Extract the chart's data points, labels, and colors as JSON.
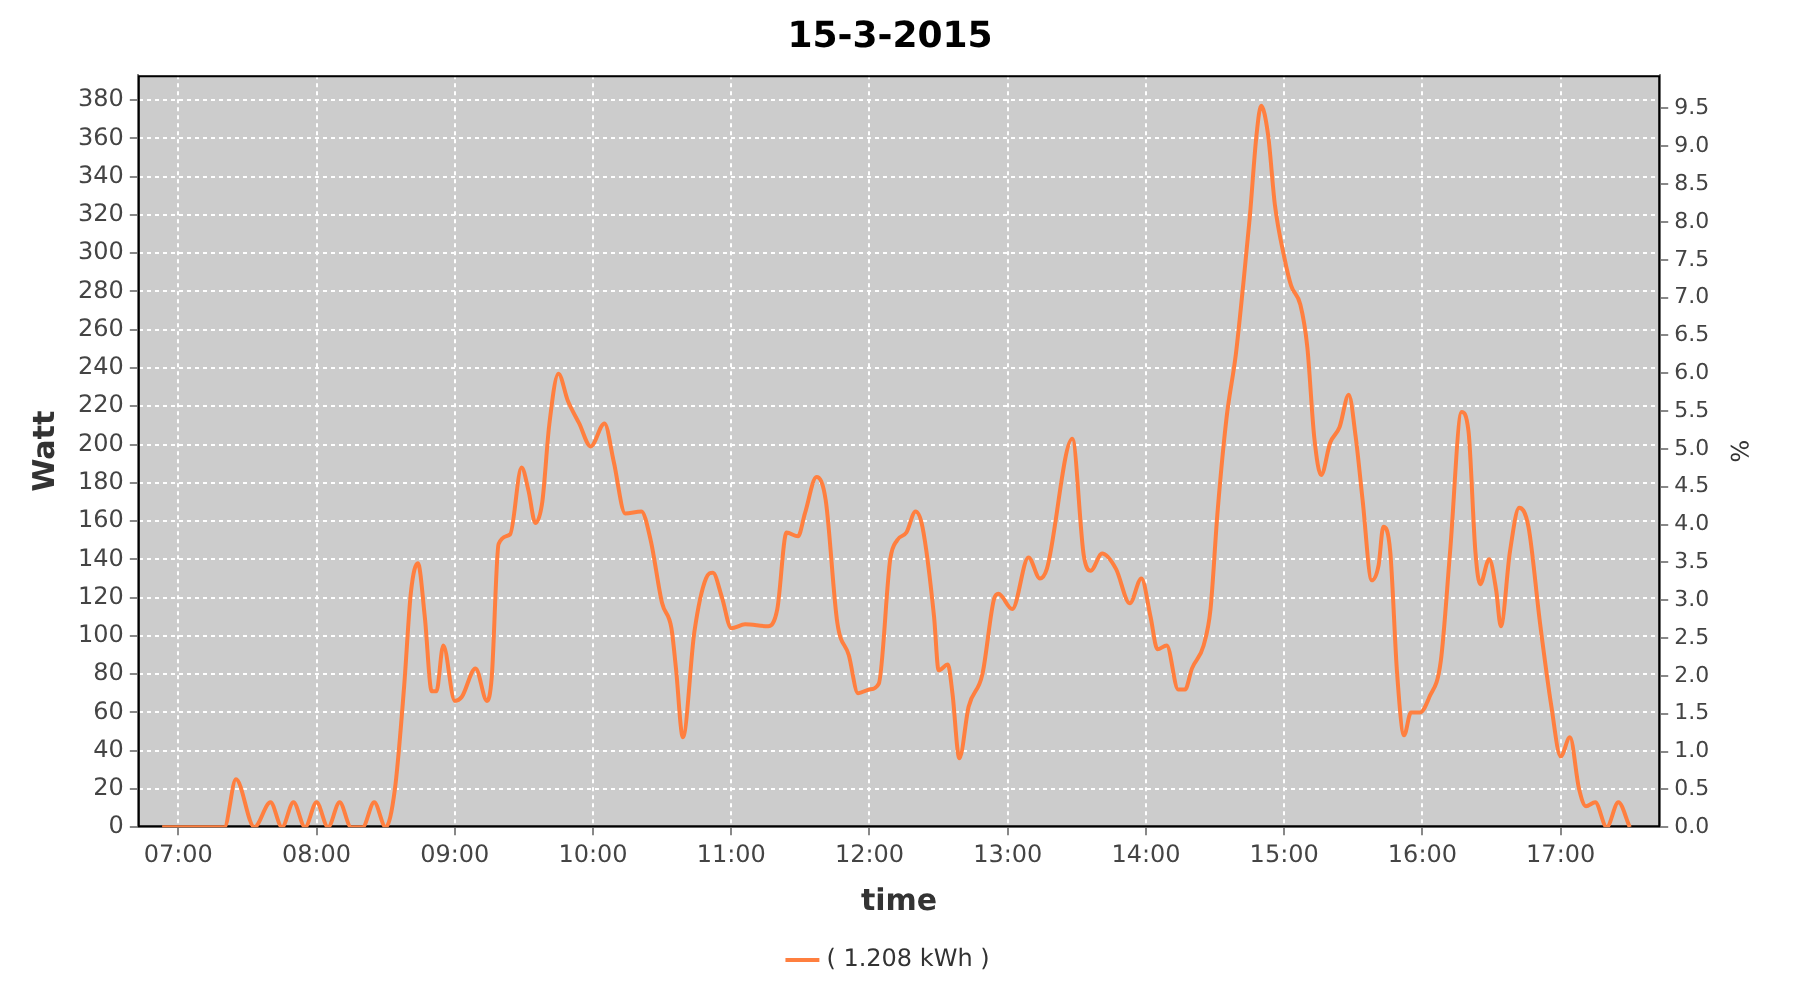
{
  "chart_data": {
    "type": "line",
    "title": "15-3-2015",
    "xlabel": "time",
    "ylabel": "Watt",
    "y2label": "%",
    "xlim": [
      6.707,
      17.72
    ],
    "xticks": [
      {
        "value": 7,
        "label": "07:00"
      },
      {
        "value": 8,
        "label": "08:00"
      },
      {
        "value": 9,
        "label": "09:00"
      },
      {
        "value": 10,
        "label": "10:00"
      },
      {
        "value": 11,
        "label": "11:00"
      },
      {
        "value": 12,
        "label": "12:00"
      },
      {
        "value": 13,
        "label": "13:00"
      },
      {
        "value": 14,
        "label": "14:00"
      },
      {
        "value": 15,
        "label": "15:00"
      },
      {
        "value": 16,
        "label": "16:00"
      },
      {
        "value": 17,
        "label": "17:00"
      }
    ],
    "ylim": [
      0,
      393
    ],
    "yticks": [
      0,
      20,
      40,
      60,
      80,
      100,
      120,
      140,
      160,
      180,
      200,
      220,
      240,
      260,
      280,
      300,
      320,
      340,
      360,
      380
    ],
    "y2lim": [
      0,
      9.94
    ],
    "y2ticks": [
      {
        "value": 0,
        "label": "0.0"
      },
      {
        "value": 0.5,
        "label": "0.5"
      },
      {
        "value": 1,
        "label": "1.0"
      },
      {
        "value": 1.5,
        "label": "1.5"
      },
      {
        "value": 2,
        "label": "2.0"
      },
      {
        "value": 2.5,
        "label": "2.5"
      },
      {
        "value": 3,
        "label": "3.0"
      },
      {
        "value": 3.5,
        "label": "3.5"
      },
      {
        "value": 4,
        "label": "4.0"
      },
      {
        "value": 4.5,
        "label": "4.5"
      },
      {
        "value": 5,
        "label": "5.0"
      },
      {
        "value": 5.5,
        "label": "5.5"
      },
      {
        "value": 6,
        "label": "6.0"
      },
      {
        "value": 6.5,
        "label": "6.5"
      },
      {
        "value": 7,
        "label": "7.0"
      },
      {
        "value": 7.5,
        "label": "7.5"
      },
      {
        "value": 8,
        "label": "8.0"
      },
      {
        "value": 8.5,
        "label": "8.5"
      },
      {
        "value": 9,
        "label": "9.0"
      },
      {
        "value": 9.5,
        "label": "9.5"
      }
    ],
    "grid": true,
    "legend": "bottom",
    "marker": "none",
    "line_style": "solid",
    "series": [
      {
        "name": "( 1.208 kWh )",
        "color": "#ff7f3f",
        "x": [
          6.883,
          7.333,
          7.417,
          7.55,
          7.667,
          7.75,
          7.833,
          7.917,
          8.0,
          8.083,
          8.167,
          8.25,
          8.333,
          8.417,
          8.5,
          8.567,
          8.633,
          8.683,
          8.733,
          8.783,
          8.833,
          8.867,
          8.917,
          9.0,
          9.05,
          9.15,
          9.233,
          9.267,
          9.317,
          9.4,
          9.483,
          9.533,
          9.583,
          9.633,
          9.683,
          9.75,
          9.817,
          9.9,
          9.983,
          10.083,
          10.15,
          10.233,
          10.35,
          10.417,
          10.5,
          10.567,
          10.6,
          10.65,
          10.733,
          10.817,
          10.867,
          10.933,
          11.0,
          11.1,
          11.267,
          11.333,
          11.4,
          11.483,
          11.533,
          11.617,
          11.683,
          11.767,
          11.85,
          11.917,
          12.0,
          12.067,
          12.15,
          12.2,
          12.267,
          12.333,
          12.383,
          12.467,
          12.5,
          12.567,
          12.6,
          12.65,
          12.717,
          12.817,
          12.9,
          12.933,
          13.033,
          13.15,
          13.233,
          13.283,
          13.467,
          13.55,
          13.6,
          13.683,
          13.783,
          13.883,
          13.967,
          14.033,
          14.083,
          14.15,
          14.233,
          14.283,
          14.333,
          14.417,
          14.467,
          14.517,
          14.583,
          14.65,
          14.7,
          14.75,
          14.8,
          14.833,
          14.883,
          14.933,
          15.0,
          15.05,
          15.117,
          15.167,
          15.217,
          15.267,
          15.333,
          15.4,
          15.467,
          15.517,
          15.567,
          15.633,
          15.683,
          15.717,
          15.767,
          15.817,
          15.867,
          15.917,
          15.983,
          16.05,
          16.133,
          16.2,
          16.283,
          16.333,
          16.383,
          16.417,
          16.483,
          16.533,
          16.567,
          16.633,
          16.7,
          16.767,
          16.85,
          16.933,
          17.0,
          17.067,
          17.133,
          17.183,
          17.25,
          17.333,
          17.417,
          17.5
        ],
        "values": [
          0,
          0,
          25,
          0,
          13,
          0,
          13,
          0,
          13,
          0,
          13,
          0,
          0,
          13,
          0,
          20,
          73,
          123,
          138,
          110,
          71,
          71,
          95,
          66,
          68,
          83,
          66,
          78,
          148,
          153,
          188,
          176,
          159,
          170,
          210,
          237,
          223,
          211,
          199,
          211,
          191,
          164,
          165,
          150,
          117,
          104,
          83,
          47,
          102,
          130,
          133,
          120,
          104,
          106,
          105,
          114,
          154,
          152,
          164,
          183,
          171,
          107,
          90,
          70,
          72,
          75,
          140,
          150,
          154,
          165,
          157,
          110,
          82,
          85,
          70,
          36,
          63,
          80,
          119,
          122,
          114,
          141,
          130,
          135,
          203,
          142,
          134,
          143,
          135,
          117,
          130,
          110,
          93,
          95,
          72,
          72,
          83,
          95,
          114,
          164,
          214,
          247,
          281,
          318,
          362,
          377,
          362,
          325,
          298,
          283,
          273,
          251,
          204,
          184,
          201,
          209,
          226,
          204,
          171,
          129,
          137,
          157,
          144,
          80,
          48,
          60,
          60,
          68,
          87,
          144,
          217,
          207,
          144,
          127,
          140,
          124,
          105,
          144,
          167,
          157,
          107,
          63,
          37,
          47,
          20,
          11,
          13,
          0,
          13,
          0
        ]
      }
    ]
  }
}
